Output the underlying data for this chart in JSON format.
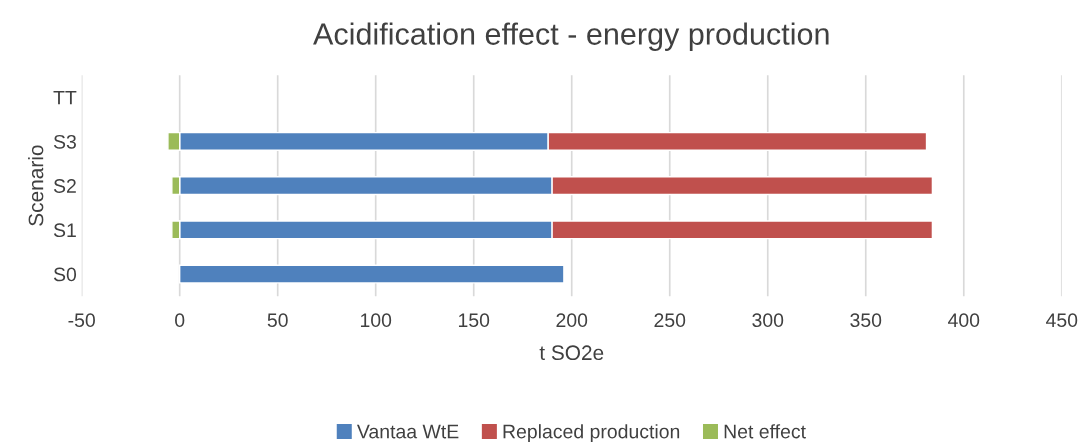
{
  "chart_data": {
    "type": "bar",
    "orientation": "horizontal",
    "stacked": true,
    "title": "Acidification effect - energy production",
    "xlabel": "t SO2e",
    "ylabel": "Scenario",
    "categories": [
      "TT",
      "S3",
      "S2",
      "S1",
      "S0"
    ],
    "series": [
      {
        "name": "Vantaa WtE",
        "color": "#4f81bd",
        "values": [
          null,
          188,
          190,
          190,
          196
        ]
      },
      {
        "name": "Replaced production",
        "color": "#c0504d",
        "values": [
          null,
          193,
          194,
          194,
          null
        ]
      },
      {
        "name": "Net effect",
        "color": "#9bbb59",
        "values": [
          null,
          -6,
          -4,
          -4,
          null
        ]
      }
    ],
    "xlim": [
      -50,
      450
    ],
    "xticks": [
      -50,
      0,
      50,
      100,
      150,
      200,
      250,
      300,
      350,
      400,
      450
    ],
    "grid": "x",
    "legend": "bottom"
  }
}
